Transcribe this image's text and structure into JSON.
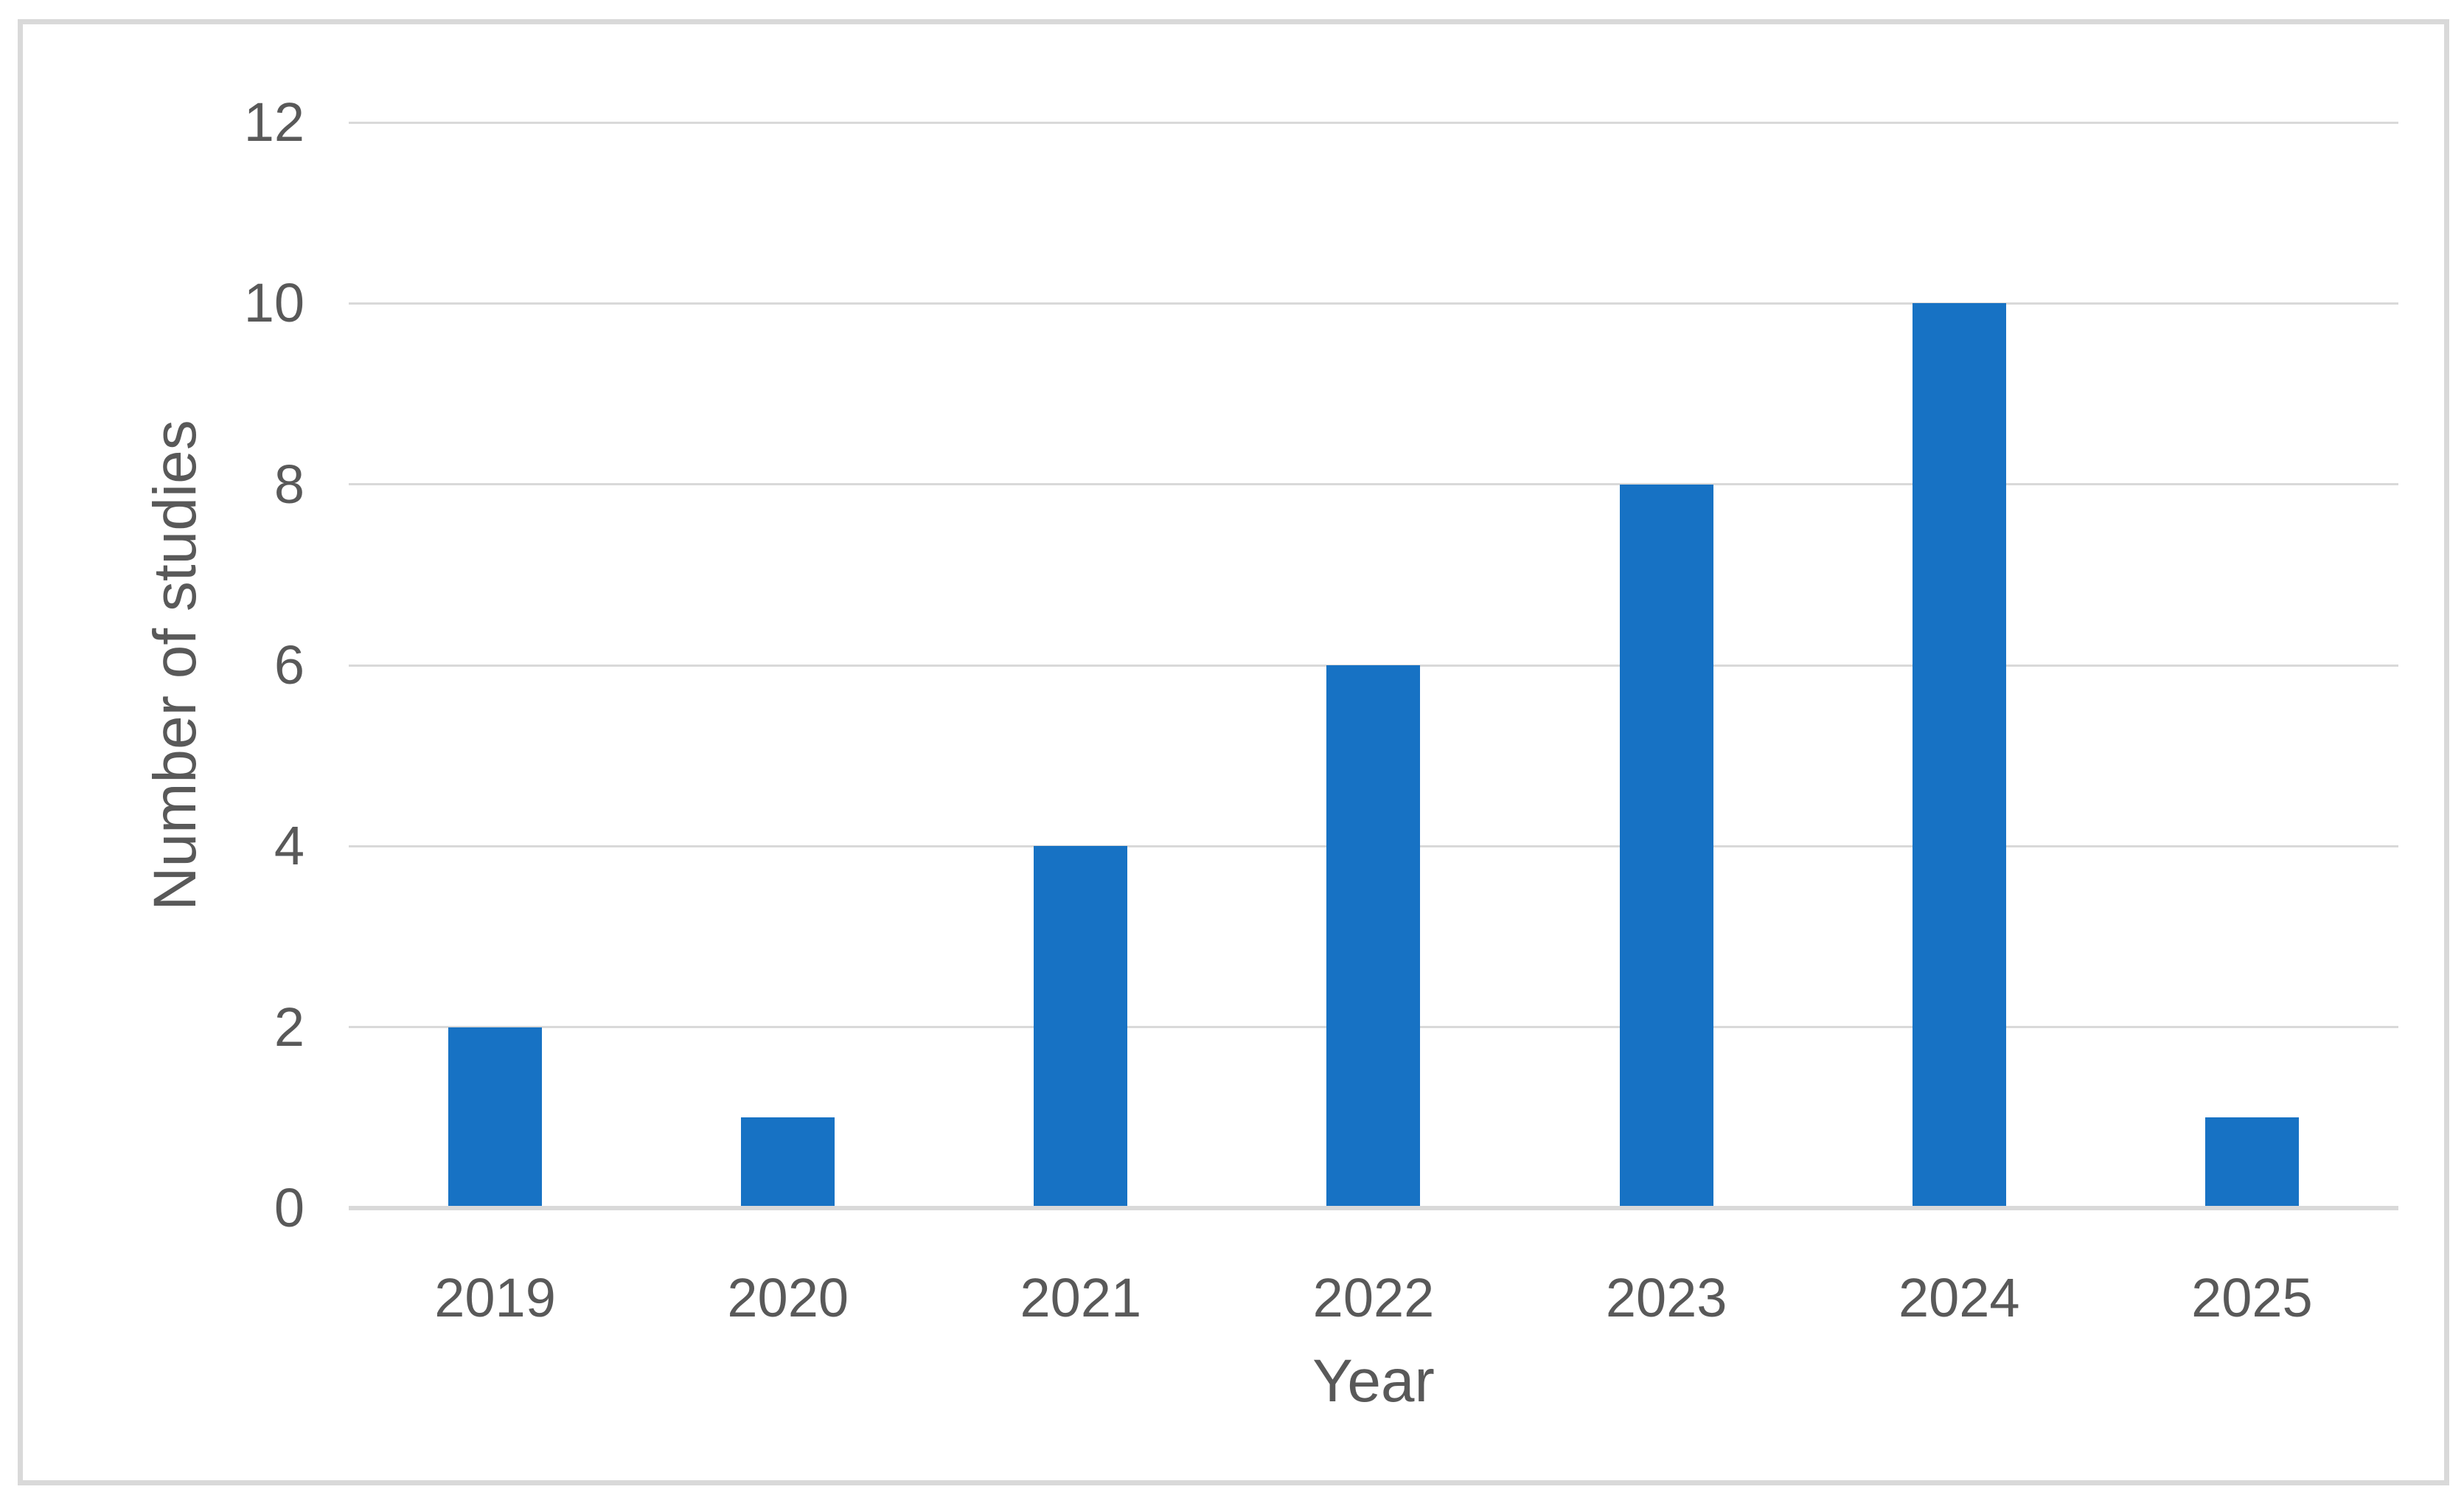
{
  "figure": {
    "background": "#FFFFFF",
    "border_color": "#D9D9D9"
  },
  "chart_data": {
    "type": "bar",
    "title": "",
    "categories": [
      "2019",
      "2020",
      "2021",
      "2022",
      "2023",
      "2024",
      "2025"
    ],
    "values": [
      2,
      1,
      4,
      6,
      8,
      10,
      1
    ],
    "xlabel": "Year",
    "ylabel": "Number of studies",
    "ylim": [
      0,
      12
    ],
    "yticks": [
      0,
      2,
      4,
      6,
      8,
      10,
      12
    ],
    "grid": true,
    "legend": false,
    "series_count": 1,
    "bar_color": "#1772C4",
    "gridline_color": "#D9D9D9",
    "axis_line_color": "#D9D9D9",
    "tick_label_color": "#595959",
    "axis_title_color": "#595959"
  }
}
